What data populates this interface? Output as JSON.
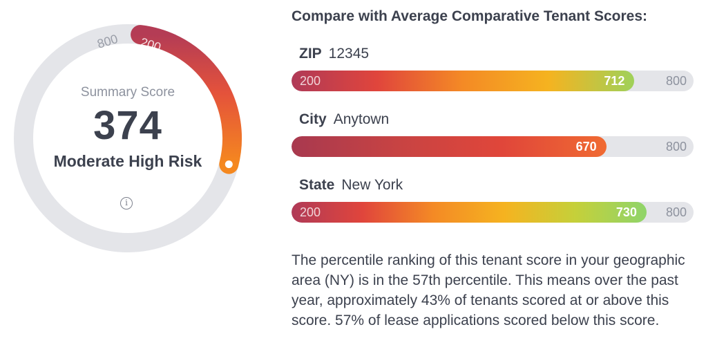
{
  "summary": {
    "label": "Summary Score",
    "score": "374",
    "risk": "Moderate High Risk",
    "gauge_min": "200",
    "gauge_max": "800",
    "score_fraction": 0.29,
    "info_icon": "info-icon"
  },
  "compare": {
    "title": "Compare with Average Comparative Tenant Scores:",
    "rows": [
      {
        "key": "ZIP",
        "value": "12345",
        "min_label": "200",
        "score": "712",
        "max_label": "800",
        "fill_fraction": 0.853,
        "gradient": [
          "#b03a57",
          "#e0453c",
          "#f48a25",
          "#f5b320",
          "#9fd15a"
        ]
      },
      {
        "key": "City",
        "value": "Anytown",
        "min_label": "",
        "score": "670",
        "max_label": "800",
        "fill_fraction": 0.783,
        "gradient": [
          "#a8394f",
          "#c74343",
          "#e0463a",
          "#f06a32"
        ]
      },
      {
        "key": "State",
        "value": "New York",
        "min_label": "200",
        "score": "730",
        "max_label": "800",
        "fill_fraction": 0.883,
        "gradient": [
          "#b03a57",
          "#e0453c",
          "#f48a25",
          "#f5b320",
          "#c5d03a",
          "#8fd46a"
        ]
      }
    ]
  },
  "percentile_text": "The percentile ranking of this tenant score in your geographic area (NY) is in the 57th percentile. This means over the past year, approximately 43% of tenants scored at or above this score. 57% of lease applications scored below this score.",
  "colors": {
    "track": "#e4e5e9",
    "gauge_start": "#b43c55",
    "gauge_mid": "#e4523b",
    "gauge_end": "#f5881f"
  }
}
